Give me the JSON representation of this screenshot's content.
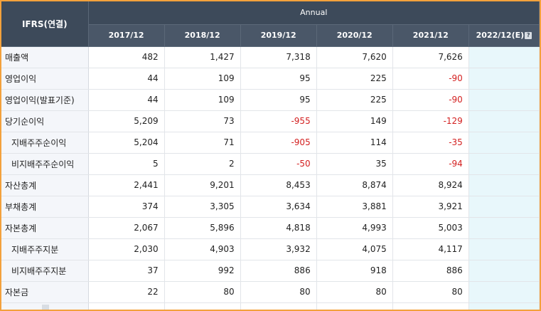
{
  "header": {
    "corner_label": "IFRS(연결)",
    "group_label": "Annual",
    "years": [
      "2017/12",
      "2018/12",
      "2019/12",
      "2020/12",
      "2021/12",
      "2022/12(E)"
    ]
  },
  "rows": [
    {
      "label": "매출액",
      "indent": false,
      "values": [
        "482",
        "1,427",
        "7,318",
        "7,620",
        "7,626",
        ""
      ]
    },
    {
      "label": "영업이익",
      "indent": false,
      "values": [
        "44",
        "109",
        "95",
        "225",
        "-90",
        ""
      ]
    },
    {
      "label": "영업이익(발표기준)",
      "indent": false,
      "values": [
        "44",
        "109",
        "95",
        "225",
        "-90",
        ""
      ]
    },
    {
      "label": "당기순이익",
      "indent": false,
      "values": [
        "5,209",
        "73",
        "-955",
        "149",
        "-129",
        ""
      ]
    },
    {
      "label": "지배주주순이익",
      "indent": true,
      "values": [
        "5,204",
        "71",
        "-905",
        "114",
        "-35",
        ""
      ]
    },
    {
      "label": "비지배주주순이익",
      "indent": true,
      "values": [
        "5",
        "2",
        "-50",
        "35",
        "-94",
        ""
      ]
    },
    {
      "label": "자산총계",
      "indent": false,
      "values": [
        "2,441",
        "9,201",
        "8,453",
        "8,874",
        "8,924",
        ""
      ]
    },
    {
      "label": "부채총계",
      "indent": false,
      "values": [
        "374",
        "3,305",
        "3,634",
        "3,881",
        "3,921",
        ""
      ]
    },
    {
      "label": "자본총계",
      "indent": false,
      "values": [
        "2,067",
        "5,896",
        "4,818",
        "4,993",
        "5,003",
        ""
      ]
    },
    {
      "label": "지배주주지분",
      "indent": true,
      "values": [
        "2,030",
        "4,903",
        "3,932",
        "4,075",
        "4,117",
        ""
      ]
    },
    {
      "label": "비지배주주지분",
      "indent": true,
      "values": [
        "37",
        "992",
        "886",
        "918",
        "886",
        ""
      ]
    },
    {
      "label": "자본금",
      "indent": false,
      "values": [
        "22",
        "80",
        "80",
        "80",
        "80",
        ""
      ]
    }
  ],
  "colors": {
    "header_bg": "#3d4a5a",
    "label_bg": "#f4f6fa",
    "estimate_bg": "#e8f7fb",
    "negative": "#d31f1f",
    "frame_border": "#f3a13c"
  },
  "icons": {
    "estimate_info": "info-box-icon"
  }
}
